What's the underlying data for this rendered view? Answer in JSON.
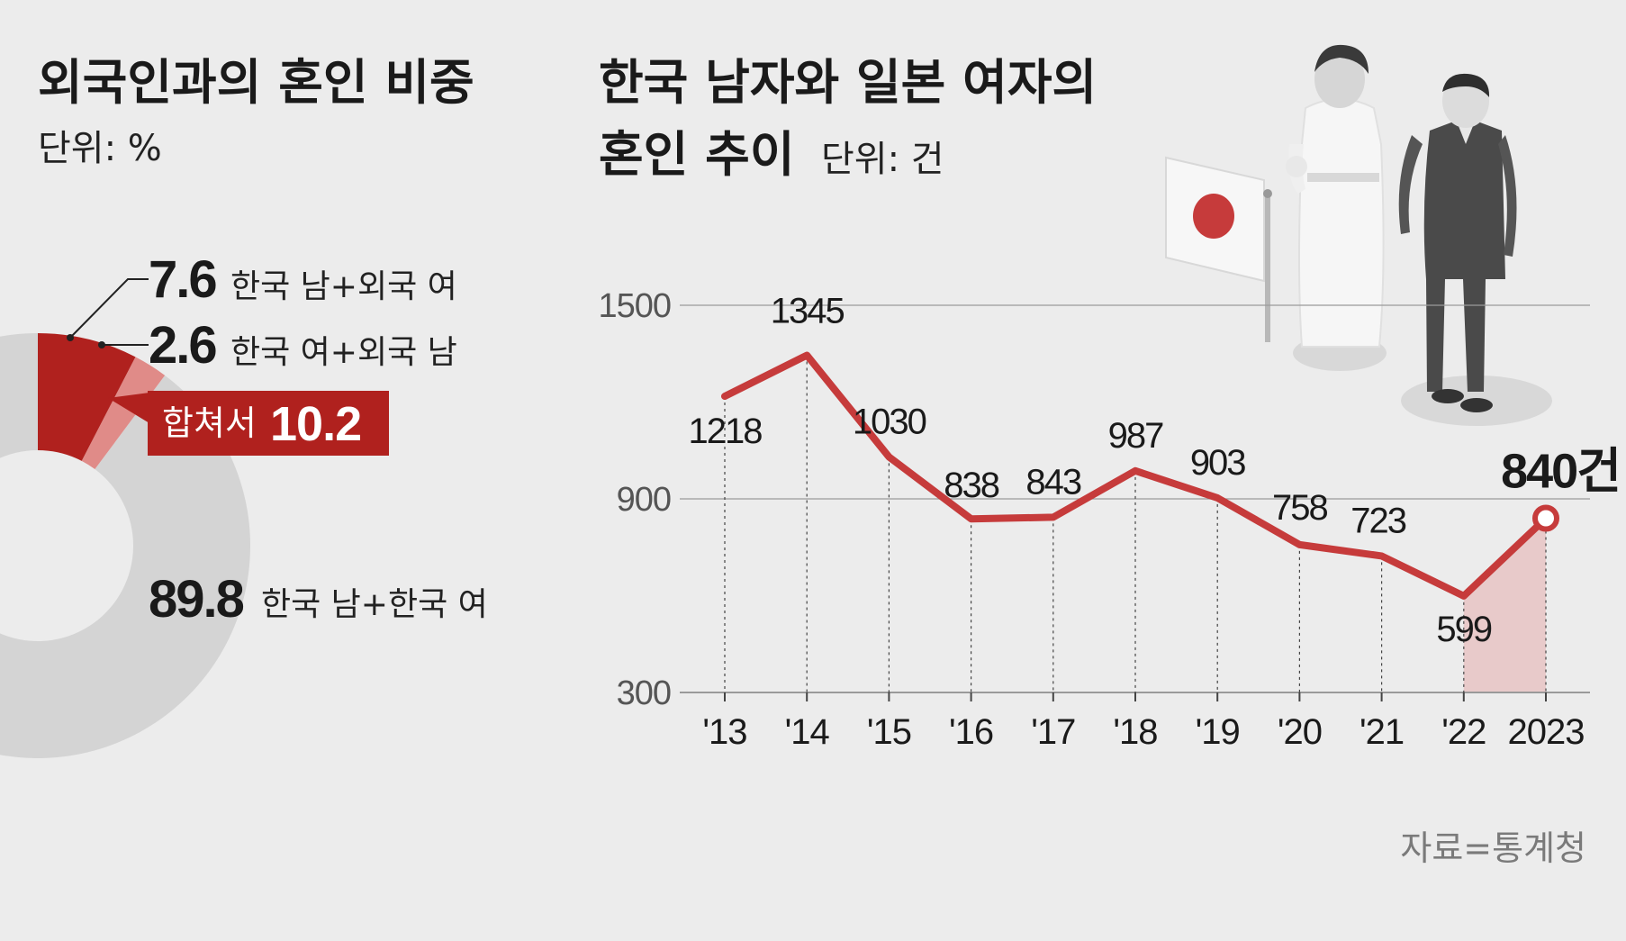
{
  "colors": {
    "background": "#ececec",
    "accent": "#c63b3b",
    "dark_red": "#b0211e",
    "light_red": "#e08b88",
    "donut_gray": "#d4d4d4",
    "highlight_fill": "#e8c4c4"
  },
  "source": "자료=통계청",
  "chart_data": [
    {
      "type": "pie",
      "variant": "donut",
      "title": "외국인과의 혼인 비중",
      "unit_label": "단위: %",
      "slices": [
        {
          "label": "한국 남+외국 여",
          "value": 7.6,
          "value_label": "7.6",
          "color": "#b0211e"
        },
        {
          "label": "한국 여+외국 남",
          "value": 2.6,
          "value_label": "2.6",
          "color": "#e08b88"
        },
        {
          "label": "한국 남+한국 여",
          "value": 89.8,
          "value_label": "89.8",
          "color": "#d4d4d4"
        }
      ],
      "combined": {
        "label": "합쳐서",
        "value_label": "10.2"
      }
    },
    {
      "type": "line",
      "title_line1": "한국 남자와 일본 여자의",
      "title_line2": "혼인 추이",
      "unit_label": "단위: 건",
      "categories": [
        "'13",
        "'14",
        "'15",
        "'16",
        "'17",
        "'18",
        "'19",
        "'20",
        "'21",
        "'22",
        "2023"
      ],
      "series": [
        {
          "name": "한국 남자와 일본 여자의 혼인",
          "values": [
            1218,
            1345,
            1030,
            838,
            843,
            987,
            903,
            758,
            723,
            599,
            840
          ]
        }
      ],
      "value_labels": [
        "1218",
        "1345",
        "1030",
        "838",
        "843",
        "987",
        "903",
        "758",
        "723",
        "599",
        "840"
      ],
      "highlight_label": "840건",
      "highlight_index": 10,
      "y_ticks": [
        1500,
        900,
        300
      ],
      "y_tick_labels": [
        "1500",
        "900",
        "300"
      ],
      "ylim": [
        300,
        1500
      ],
      "grid": true,
      "xlabel": "",
      "ylabel": ""
    }
  ]
}
